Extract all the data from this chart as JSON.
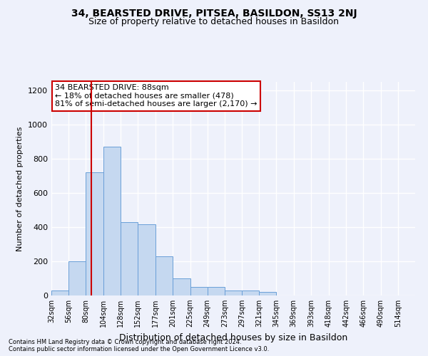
{
  "title": "34, BEARSTED DRIVE, PITSEA, BASILDON, SS13 2NJ",
  "subtitle": "Size of property relative to detached houses in Basildon",
  "xlabel": "Distribution of detached houses by size in Basildon",
  "ylabel": "Number of detached properties",
  "footer1": "Contains HM Land Registry data © Crown copyright and database right 2024.",
  "footer2": "Contains public sector information licensed under the Open Government Licence v3.0.",
  "annotation_line1": "34 BEARSTED DRIVE: 88sqm",
  "annotation_line2": "← 18% of detached houses are smaller (478)",
  "annotation_line3": "81% of semi-detached houses are larger (2,170) →",
  "bar_edges": [
    32,
    56,
    80,
    104,
    128,
    152,
    177,
    201,
    225,
    249,
    273,
    297,
    321,
    345,
    369,
    393,
    418,
    442,
    466,
    490,
    514
  ],
  "bar_heights": [
    30,
    200,
    720,
    870,
    430,
    415,
    230,
    100,
    50,
    50,
    30,
    30,
    20,
    0,
    0,
    0,
    0,
    0,
    0,
    0,
    0
  ],
  "bar_color": "#c5d8f0",
  "bar_edge_color": "#6a9fd8",
  "red_line_x": 88,
  "ylim": [
    0,
    1250
  ],
  "yticks": [
    0,
    200,
    400,
    600,
    800,
    1000,
    1200
  ],
  "background_color": "#eef1fb",
  "grid_color": "#ffffff",
  "annotation_box_color": "#ffffff",
  "annotation_box_edge": "#cc0000",
  "red_line_color": "#cc0000",
  "title_fontsize": 10,
  "subtitle_fontsize": 9,
  "ylabel_fontsize": 8,
  "xlabel_fontsize": 9
}
